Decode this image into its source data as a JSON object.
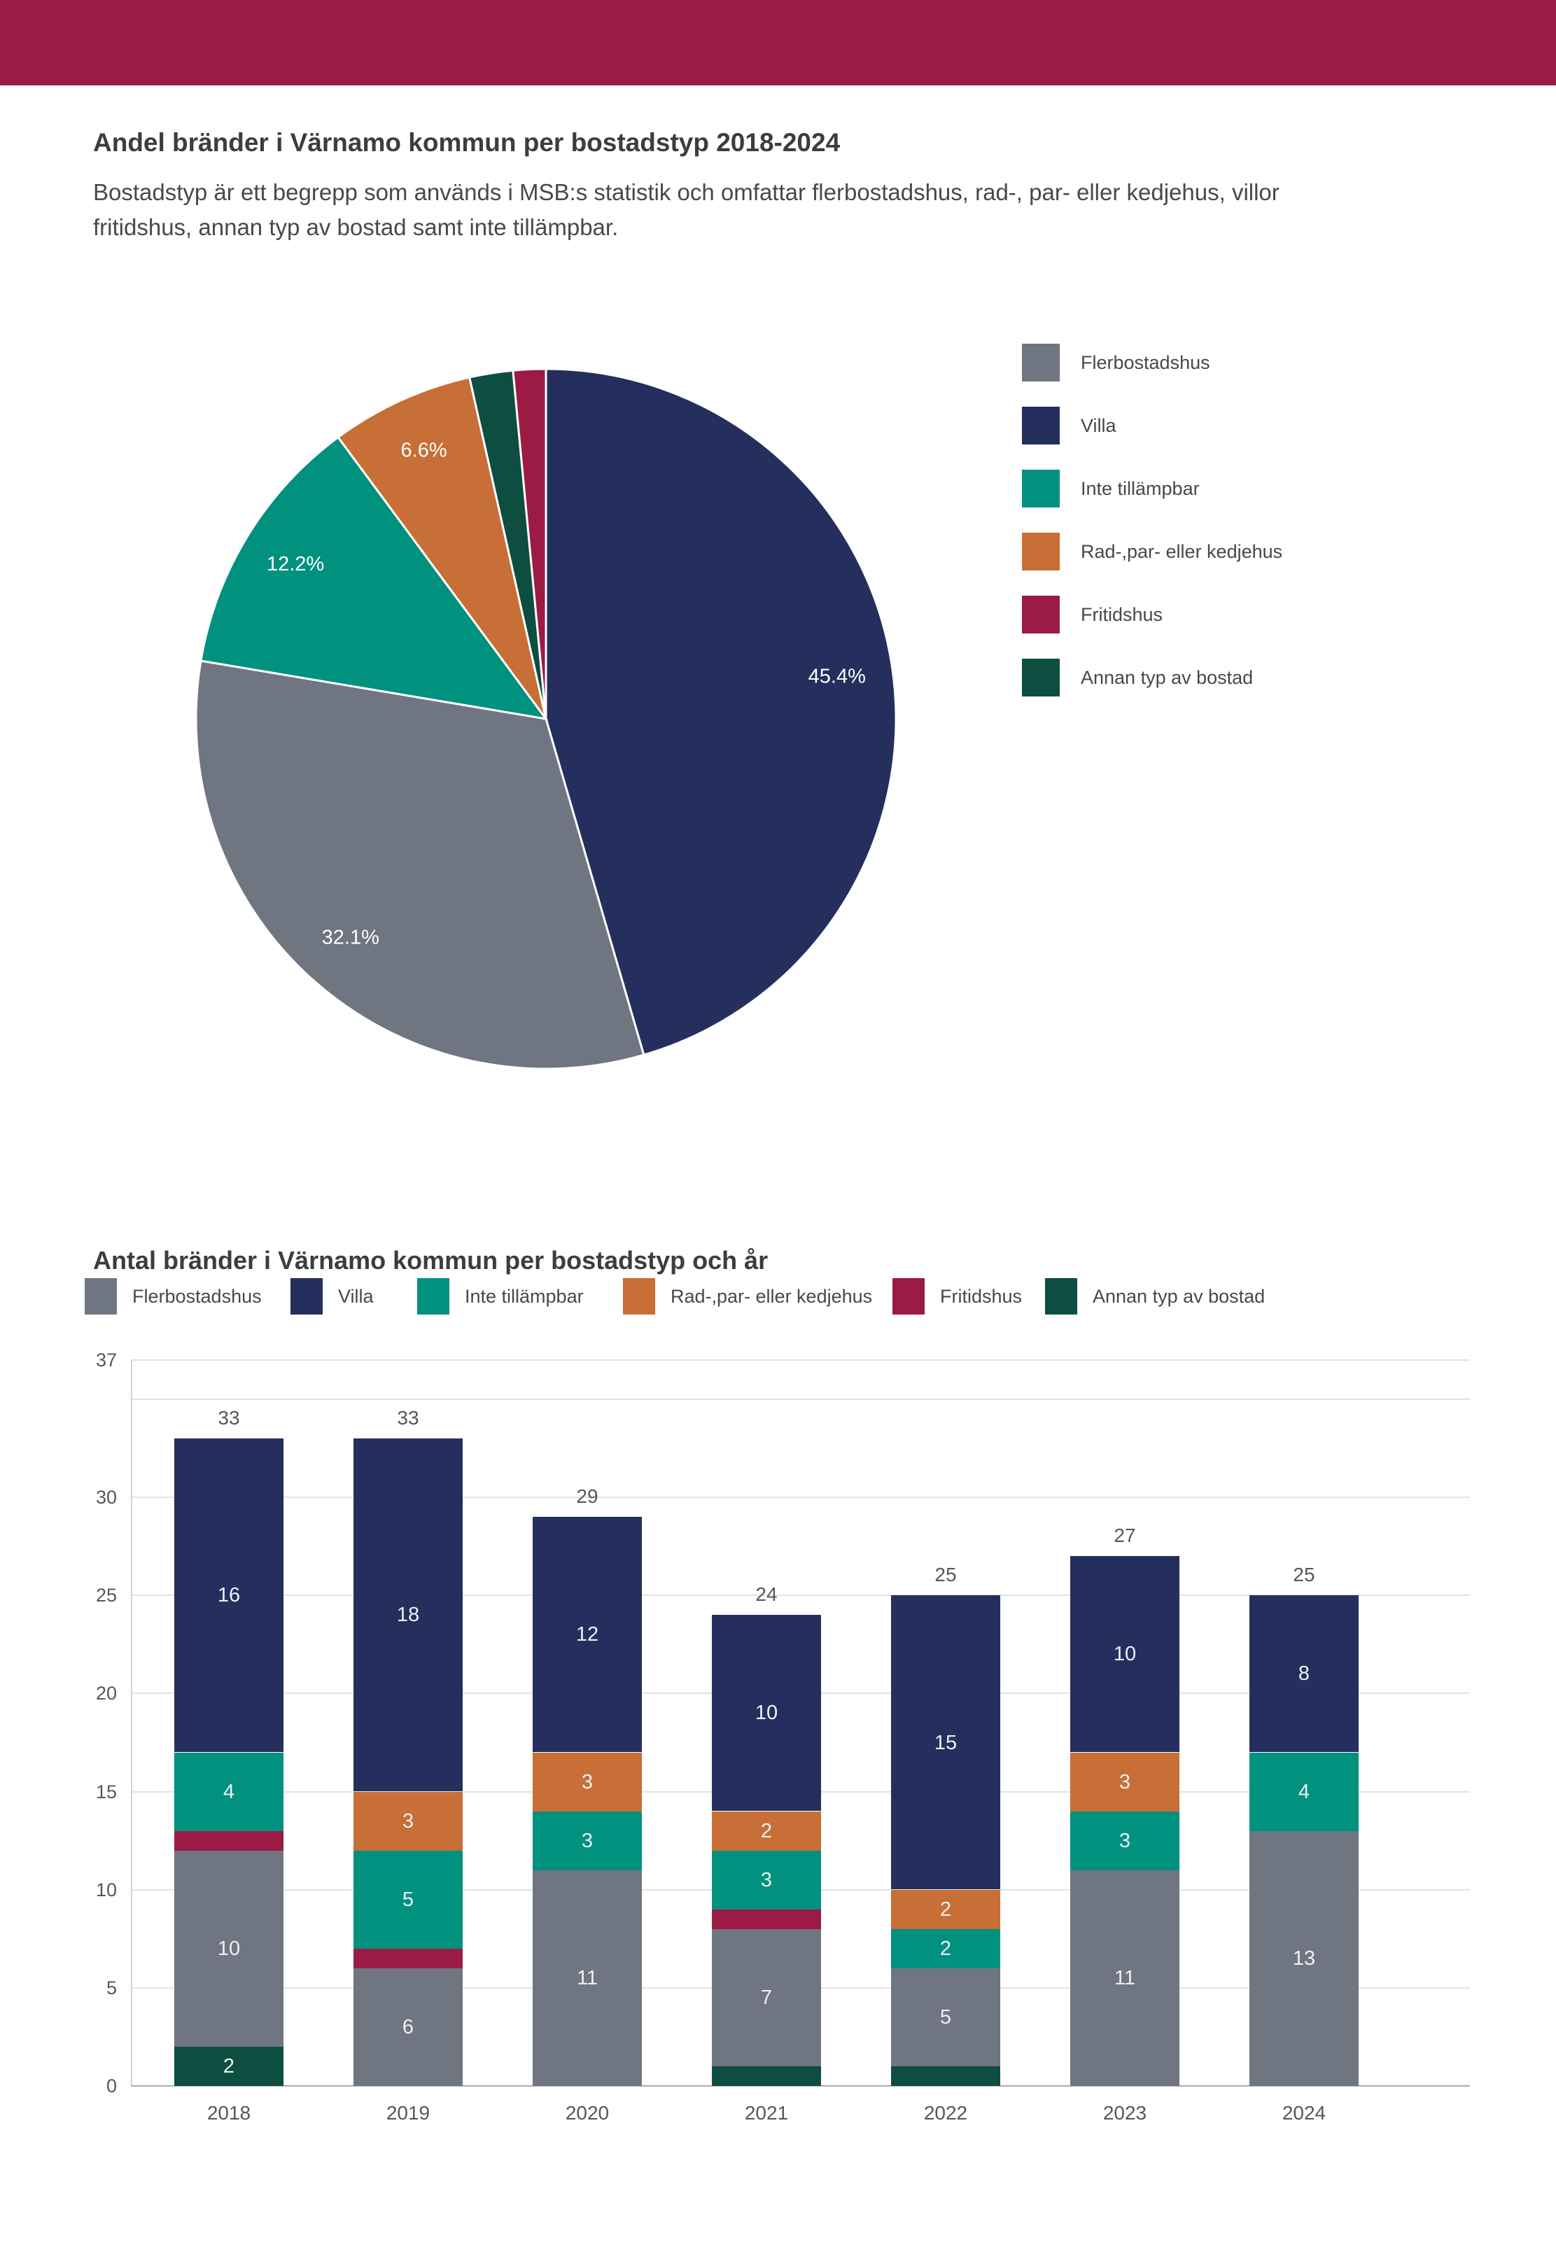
{
  "page": {
    "header_color": "#9c1b45",
    "background_color": "#ffffff"
  },
  "pie_section": {
    "title": "Andel bränder i Värnamo kommun per bostadstyp 2018-2024",
    "description_line1": "Bostadstyp är ett begrepp som används i MSB:s statistik och omfattar flerbostadshus, rad-, par- eller kedjehus, villor",
    "description_line2": "fritidshus, annan typ av bostad samt inte tillämpbar."
  },
  "bar_section": {
    "title": "Antal bränder i Värnamo kommun per bostadstyp och år"
  },
  "legend": [
    {
      "label": "Flerbostadshus",
      "color": "#6f7581"
    },
    {
      "label": "Villa",
      "color": "#242f5e"
    },
    {
      "label": "Inte tillämpbar",
      "color": "#00917f"
    },
    {
      "label": "Rad-,par- eller kedjehus",
      "color": "#c76f36"
    },
    {
      "label": "Fritidshus",
      "color": "#9c1b45"
    },
    {
      "label": "Annan typ av bostad",
      "color": "#0d4e41"
    }
  ],
  "chart_data": [
    {
      "type": "pie",
      "title": "Andel bränder i Värnamo kommun per bostadstyp 2018-2024",
      "legend_position": "right",
      "start_angle_deg": 0,
      "direction": "clockwise",
      "slices": [
        {
          "label": "Villa",
          "value": 45.4,
          "display_label": "45.4%"
        },
        {
          "label": "Flerbostadshus",
          "value": 32.1,
          "display_label": "32.1%"
        },
        {
          "label": "Inte tillämpbar",
          "value": 12.2,
          "display_label": "12.2%"
        },
        {
          "label": "Rad-,par- eller kedjehus",
          "value": 6.6,
          "display_label": "6.6%"
        },
        {
          "label": "Annan typ av bostad",
          "value": 2.0,
          "display_label": ""
        },
        {
          "label": "Fritidshus",
          "value": 1.5,
          "display_label": ""
        }
      ]
    },
    {
      "type": "bar",
      "stacked": true,
      "title": "Antal bränder i Värnamo kommun per bostadstyp och år",
      "categories": [
        "2018",
        "2019",
        "2020",
        "2021",
        "2022",
        "2023",
        "2024"
      ],
      "stack_order_bottom_to_top": [
        "Annan typ av bostad",
        "Flerbostadshus",
        "Fritidshus",
        "Inte tillämpbar",
        "Rad-,par- eller kedjehus",
        "Villa"
      ],
      "series": [
        {
          "name": "Flerbostadshus",
          "values": [
            10,
            6,
            11,
            7,
            5,
            11,
            13
          ]
        },
        {
          "name": "Villa",
          "values": [
            16,
            18,
            12,
            10,
            15,
            10,
            8
          ]
        },
        {
          "name": "Inte tillämpbar",
          "values": [
            4,
            5,
            3,
            3,
            2,
            3,
            4
          ]
        },
        {
          "name": "Rad-,par- eller kedjehus",
          "values": [
            0,
            3,
            3,
            2,
            2,
            3,
            0
          ]
        },
        {
          "name": "Fritidshus",
          "values": [
            1,
            1,
            0,
            1,
            0,
            0,
            0
          ]
        },
        {
          "name": "Annan typ av bostad",
          "values": [
            2,
            0,
            0,
            1,
            1,
            0,
            0
          ]
        }
      ],
      "totals": [
        33,
        33,
        29,
        24,
        25,
        27,
        25
      ],
      "ylim": [
        0,
        37
      ],
      "yticks": [
        0,
        5,
        10,
        15,
        20,
        25,
        30,
        37
      ],
      "gridlines_every": 5,
      "grid": true,
      "segment_label_min_value": 2,
      "xlabel": "",
      "ylabel": ""
    }
  ]
}
